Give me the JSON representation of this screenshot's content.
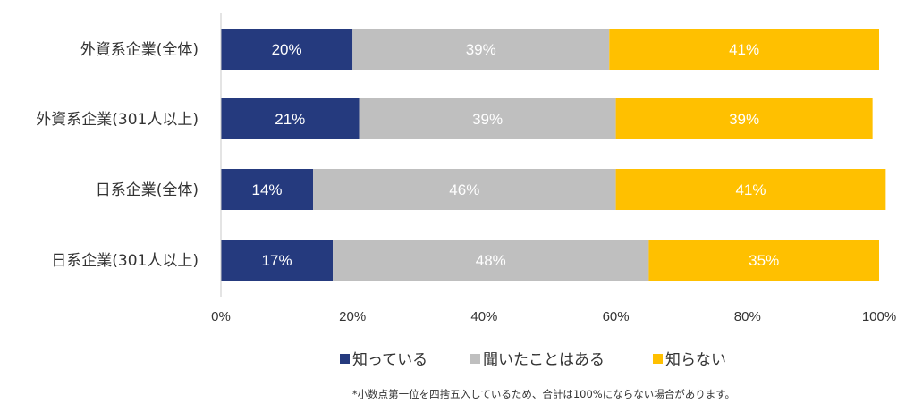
{
  "chart_data": {
    "type": "bar",
    "orientation": "horizontal",
    "stacked": true,
    "categories": [
      "外資系企業(全体)",
      "外資系企業(301人以上)",
      "日系企業(全体)",
      "日系企業(301人以上)"
    ],
    "series": [
      {
        "name": "知っている",
        "color": "#253A7E",
        "values": [
          20,
          21,
          14,
          17
        ],
        "labels": [
          "20%",
          "21%",
          "14%",
          "17%"
        ]
      },
      {
        "name": "聞いたことはある",
        "color": "#BFBFBF",
        "values": [
          39,
          39,
          46,
          48
        ],
        "labels": [
          "39%",
          "39%",
          "46%",
          "48%"
        ]
      },
      {
        "name": "知らない",
        "color": "#FFC000",
        "values": [
          41,
          39,
          41,
          35
        ],
        "labels": [
          "41%",
          "39%",
          "41%",
          "35%"
        ]
      }
    ],
    "xlim": [
      0,
      100
    ],
    "x_ticks": [
      0,
      20,
      40,
      60,
      80,
      100
    ],
    "x_tick_labels": [
      "0%",
      "20%",
      "40%",
      "60%",
      "80%",
      "100%"
    ],
    "grid": false,
    "legend_position": "bottom",
    "footnote": "*小数点第一位を四捨五入しているため、合計は100%にならない場合があります。"
  }
}
